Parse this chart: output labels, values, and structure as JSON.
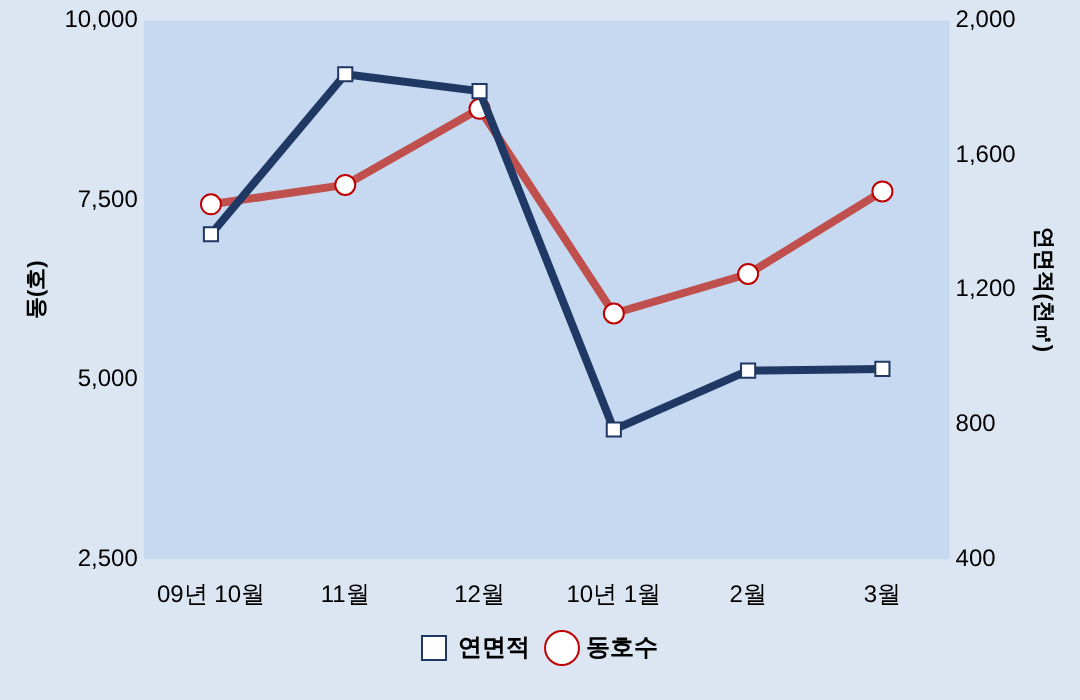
{
  "chart_data": {
    "type": "line",
    "categories": [
      "09년 10월",
      "11월",
      "12월",
      "10년 1월",
      "2월",
      "3월"
    ],
    "ylabel": "동(호)",
    "y2label": "연면적(천㎡)",
    "ylim": [
      2500,
      10000
    ],
    "yticks": [
      {
        "value": 2500,
        "label": "2,500"
      },
      {
        "value": 5000,
        "label": "5,000"
      },
      {
        "value": 7500,
        "label": "7,500"
      },
      {
        "value": 10000,
        "label": "10,000"
      }
    ],
    "y2lim": [
      400,
      2000
    ],
    "y2ticks": [
      400,
      800,
      {
        "value": 1200,
        "label": "1,200"
      },
      {
        "value": 1600,
        "label": "1,600"
      },
      {
        "value": 2000,
        "label": "2,000"
      }
    ],
    "series": [
      {
        "name": "연면적",
        "color": "#1f3864",
        "axis": "y2",
        "marker": "square",
        "values": [
          1365,
          1840,
          1790,
          785,
          960,
          965
        ]
      },
      {
        "name": "동호수",
        "color": "#c0504d",
        "marker": "circle",
        "values": [
          7440,
          7710,
          8770,
          5920,
          6470,
          7620
        ]
      }
    ],
    "grid": false,
    "legend": "bottom"
  }
}
